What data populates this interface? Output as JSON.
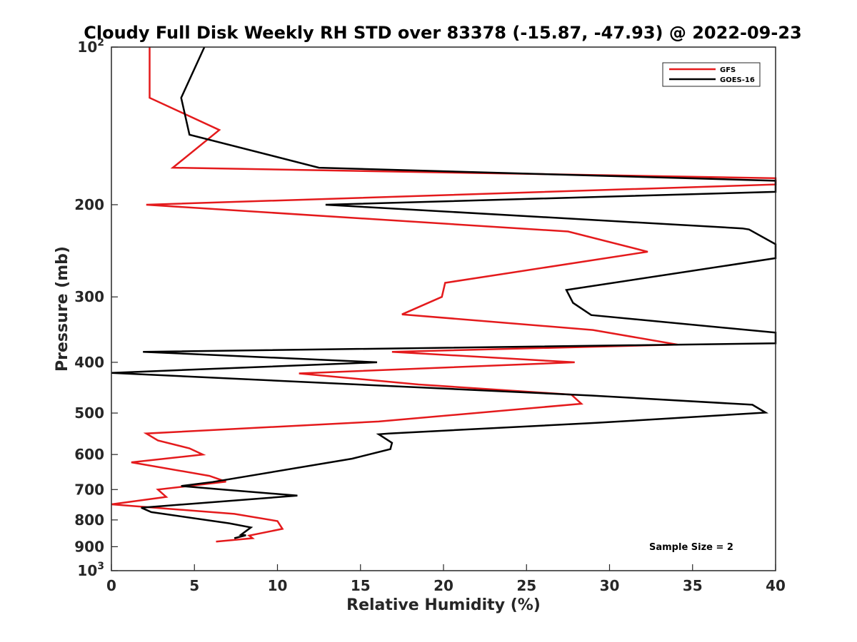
{
  "chart_data": {
    "type": "line",
    "title": "Cloudy Full Disk Weekly RH STD over 83378 (-15.87, -47.93) @ 2022-09-23",
    "xlabel": "Relative Humidity (%)",
    "ylabel": "Pressure (mb)",
    "xlim": [
      0,
      40
    ],
    "ylim": [
      100,
      1000
    ],
    "yscale": "log",
    "y_reversed": true,
    "grid": false,
    "legend_position": "top-right",
    "x_ticks": [
      0,
      5,
      10,
      15,
      20,
      25,
      30,
      35,
      40
    ],
    "x_tick_labels": [
      "0",
      "5",
      "10",
      "15",
      "20",
      "25",
      "30",
      "35",
      "40"
    ],
    "y_ticks": [
      100,
      200,
      300,
      400,
      500,
      600,
      700,
      800,
      900,
      1000
    ],
    "y_tick_labels": [
      {
        "base": "10",
        "exp": "2"
      },
      {
        "base": "200",
        "exp": ""
      },
      {
        "base": "300",
        "exp": ""
      },
      {
        "base": "400",
        "exp": ""
      },
      {
        "base": "500",
        "exp": ""
      },
      {
        "base": "600",
        "exp": ""
      },
      {
        "base": "700",
        "exp": ""
      },
      {
        "base": "800",
        "exp": ""
      },
      {
        "base": "900",
        "exp": ""
      },
      {
        "base": "10",
        "exp": "3"
      }
    ],
    "series": [
      {
        "name": "GFS",
        "color": "#e41a1c",
        "points": [
          [
            2.3,
            100
          ],
          [
            2.3,
            125
          ],
          [
            6.5,
            144
          ],
          [
            3.7,
            170
          ],
          [
            40.0,
            178
          ],
          [
            40.0,
            183
          ],
          [
            2.1,
            200
          ],
          [
            27.5,
            225
          ],
          [
            32.3,
            246
          ],
          [
            20.1,
            282
          ],
          [
            19.9,
            300
          ],
          [
            17.5,
            324
          ],
          [
            29.0,
            347
          ],
          [
            34.1,
            370
          ],
          [
            16.9,
            382
          ],
          [
            27.9,
            400
          ],
          [
            11.3,
            420
          ],
          [
            18.5,
            441
          ],
          [
            27.7,
            461
          ],
          [
            28.3,
            480
          ],
          [
            16.1,
            519
          ],
          [
            2.1,
            547
          ],
          [
            2.8,
            564
          ],
          [
            4.7,
            584
          ],
          [
            5.5,
            600
          ],
          [
            1.2,
            621
          ],
          [
            5.9,
            659
          ],
          [
            6.9,
            676
          ],
          [
            2.8,
            700
          ],
          [
            3.3,
            723
          ],
          [
            0.0,
            747
          ],
          [
            7.4,
            779
          ],
          [
            10.0,
            804
          ],
          [
            10.3,
            832
          ],
          [
            8.3,
            857
          ],
          [
            8.5,
            867
          ],
          [
            6.3,
            880
          ]
        ]
      },
      {
        "name": "GOES-16",
        "color": "#000000",
        "points": [
          [
            5.6,
            100
          ],
          [
            4.2,
            125
          ],
          [
            4.7,
            147
          ],
          [
            12.5,
            170
          ],
          [
            40.0,
            180
          ],
          [
            40.0,
            189
          ],
          [
            12.9,
            200
          ],
          [
            38.0,
            222
          ],
          [
            38.4,
            223
          ],
          [
            40.0,
            238
          ],
          [
            40.0,
            253
          ],
          [
            27.4,
            291
          ],
          [
            27.8,
            308
          ],
          [
            28.9,
            325
          ],
          [
            40.0,
            351
          ],
          [
            40.0,
            368
          ],
          [
            1.9,
            382
          ],
          [
            16.0,
            400
          ],
          [
            0.0,
            419
          ],
          [
            28.9,
            463
          ],
          [
            38.6,
            482
          ],
          [
            39.4,
            499
          ],
          [
            29.2,
            522
          ],
          [
            16.7,
            547
          ],
          [
            16.1,
            549
          ],
          [
            16.9,
            570
          ],
          [
            16.8,
            586
          ],
          [
            14.5,
            611
          ],
          [
            6.1,
            677
          ],
          [
            4.2,
            689
          ],
          [
            6.7,
            700
          ],
          [
            11.2,
            719
          ],
          [
            1.8,
            758
          ],
          [
            2.4,
            773
          ],
          [
            7.1,
            812
          ],
          [
            8.4,
            827
          ],
          [
            7.8,
            854
          ],
          [
            8.1,
            856
          ],
          [
            7.4,
            867
          ]
        ]
      }
    ],
    "annotations": [
      "Sample Size = 2"
    ]
  }
}
